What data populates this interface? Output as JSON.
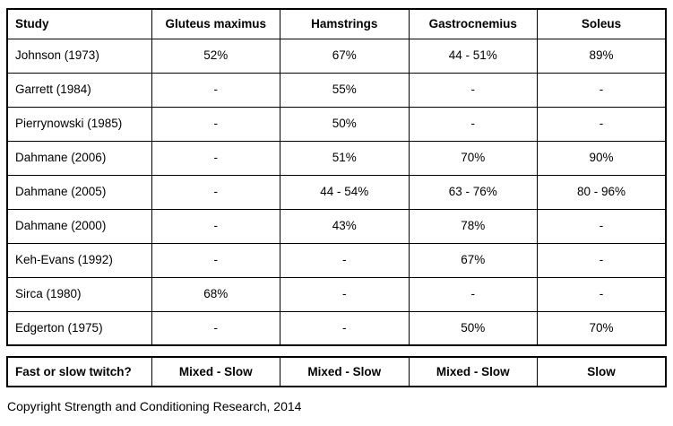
{
  "table": {
    "headers": [
      "Study",
      "Gluteus maximus",
      "Hamstrings",
      "Gastrocnemius",
      "Soleus"
    ],
    "rows": [
      {
        "study": "Johnson (1973)",
        "values": [
          "52%",
          "67%",
          "44 - 51%",
          "89%"
        ]
      },
      {
        "study": "Garrett (1984)",
        "values": [
          "-",
          "55%",
          "-",
          "-"
        ]
      },
      {
        "study": "Pierrynowski (1985)",
        "values": [
          "-",
          "50%",
          "-",
          "-"
        ]
      },
      {
        "study": "Dahmane (2006)",
        "values": [
          "-",
          "51%",
          "70%",
          "90%"
        ]
      },
      {
        "study": "Dahmane (2005)",
        "values": [
          "-",
          "44 - 54%",
          "63 - 76%",
          "80 - 96%"
        ]
      },
      {
        "study": "Dahmane (2000)",
        "values": [
          "-",
          "43%",
          "78%",
          "-"
        ]
      },
      {
        "study": "Keh-Evans (1992)",
        "values": [
          "-",
          "-",
          "67%",
          "-"
        ]
      },
      {
        "study": "Sirca (1980)",
        "values": [
          "68%",
          "-",
          "-",
          "-"
        ]
      },
      {
        "study": "Edgerton (1975)",
        "values": [
          "-",
          "-",
          "50%",
          "70%"
        ]
      }
    ]
  },
  "summary": {
    "label": "Fast or slow twitch?",
    "values": [
      "Mixed - Slow",
      "Mixed - Slow",
      "Mixed - Slow",
      "Slow"
    ]
  },
  "footer": {
    "copyright": "Copyright Strength and Conditioning Research, 2014"
  },
  "colors": {
    "border": "#000000",
    "text": "#000000",
    "background": "#ffffff"
  }
}
